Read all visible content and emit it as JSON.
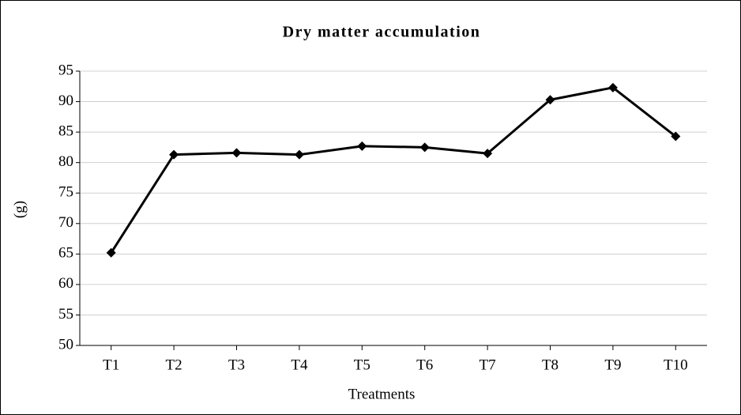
{
  "chart_data": {
    "type": "line",
    "title": "Dry matter accumulation",
    "x_label": "Treatments",
    "y_label": "(g)",
    "categories": [
      "T1",
      "T2",
      "T3",
      "T4",
      "T5",
      "T6",
      "T7",
      "T8",
      "T9",
      "T10"
    ],
    "values": [
      65.2,
      81.3,
      81.6,
      81.3,
      82.7,
      82.5,
      81.5,
      90.3,
      92.3,
      84.3
    ],
    "color": "#000000",
    "ylim": [
      50,
      95
    ],
    "yticks": [
      50,
      55,
      60,
      65,
      70,
      75,
      80,
      85,
      90,
      95
    ],
    "grid": true
  }
}
